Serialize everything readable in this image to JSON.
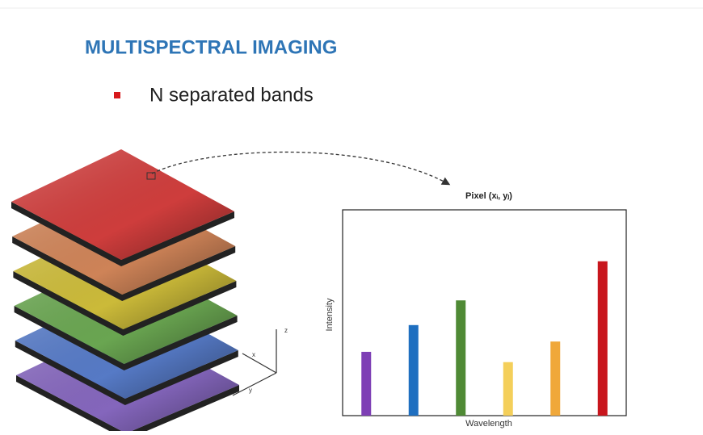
{
  "title": "MULTISPECTRAL IMAGING",
  "bullets": [
    "N separated bands"
  ],
  "axis_labels": [
    "x",
    "y",
    "z"
  ],
  "chart_data": {
    "type": "bar",
    "title": "Pixel (xᵢ, yⱼ)",
    "x_label": "Wavelength",
    "y_label": "Intensity",
    "categories": [
      null,
      null,
      null,
      null,
      null,
      null
    ],
    "values": [
      31,
      44,
      56,
      26,
      36,
      75
    ],
    "colors": [
      "#7e3fb5",
      "#1f6fc0",
      "#4f8a35",
      "#f4cf5a",
      "#f0a83a",
      "#c8161d"
    ],
    "ylim": [
      0,
      100
    ]
  }
}
